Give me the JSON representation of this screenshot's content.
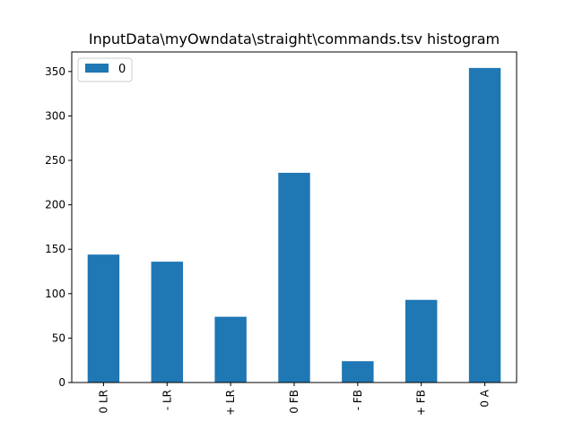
{
  "chart_data": {
    "type": "bar",
    "title": "InputData\\myOwndata\\straight\\commands.tsv histogram",
    "xlabel": "",
    "ylabel": "",
    "categories": [
      "0 LR",
      "- LR",
      "+ LR",
      "0 FB",
      "- FB",
      "+ FB",
      "0 A"
    ],
    "series": [
      {
        "name": "0",
        "values": [
          144,
          136,
          74,
          236,
          24,
          93,
          354
        ],
        "color": "#1f77b4"
      }
    ],
    "ylim": [
      0,
      372
    ],
    "yticks": [
      0,
      50,
      100,
      150,
      200,
      250,
      300,
      350
    ],
    "grid": false,
    "legend_position": "top-left"
  }
}
